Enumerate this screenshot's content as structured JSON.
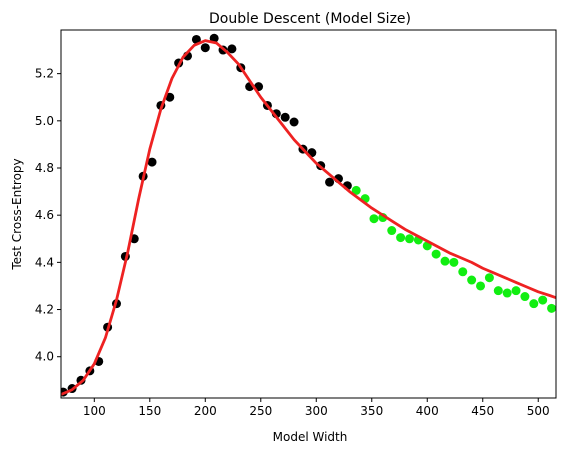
{
  "chart_data": {
    "type": "scatter",
    "title": "Double Descent (Model Size)",
    "xlabel": "Model Width",
    "ylabel": "Test Cross-Entropy",
    "xlim": [
      70,
      516
    ],
    "ylim": [
      3.825,
      5.385
    ],
    "x_ticks": [
      100,
      150,
      200,
      250,
      300,
      350,
      400,
      450,
      500
    ],
    "y_ticks": [
      4.0,
      4.2,
      4.4,
      4.6,
      4.8,
      5.0,
      5.2
    ],
    "x_tick_labels": [
      "100",
      "150",
      "200",
      "250",
      "300",
      "350",
      "400",
      "450",
      "500"
    ],
    "y_tick_labels": [
      "4.0",
      "4.2",
      "4.4",
      "4.6",
      "4.8",
      "5.0",
      "5.2"
    ],
    "grid": false,
    "legend": "none",
    "series": [
      {
        "color": "#000000",
        "points": [
          [
            72,
            3.85
          ],
          [
            80,
            3.865
          ],
          [
            88,
            3.9
          ],
          [
            96,
            3.94
          ],
          [
            104,
            3.98
          ],
          [
            112,
            4.125
          ],
          [
            120,
            4.225
          ],
          [
            128,
            4.425
          ],
          [
            136,
            4.5
          ],
          [
            144,
            4.765
          ],
          [
            152,
            4.825
          ],
          [
            160,
            5.065
          ],
          [
            168,
            5.1
          ],
          [
            176,
            5.245
          ],
          [
            184,
            5.275
          ],
          [
            192,
            5.345
          ],
          [
            200,
            5.31
          ],
          [
            208,
            5.35
          ],
          [
            216,
            5.3
          ],
          [
            224,
            5.305
          ],
          [
            232,
            5.225
          ],
          [
            240,
            5.145
          ],
          [
            248,
            5.145
          ],
          [
            256,
            5.065
          ],
          [
            264,
            5.03
          ],
          [
            272,
            5.015
          ],
          [
            280,
            4.995
          ],
          [
            288,
            4.88
          ],
          [
            296,
            4.865
          ],
          [
            304,
            4.81
          ],
          [
            312,
            4.74
          ],
          [
            320,
            4.755
          ],
          [
            328,
            4.725
          ]
        ]
      },
      {
        "color": "#11ee11",
        "points": [
          [
            336,
            4.705
          ],
          [
            344,
            4.67
          ],
          [
            352,
            4.585
          ],
          [
            360,
            4.59
          ],
          [
            368,
            4.535
          ],
          [
            376,
            4.505
          ],
          [
            384,
            4.5
          ],
          [
            392,
            4.495
          ],
          [
            400,
            4.47
          ],
          [
            408,
            4.435
          ],
          [
            416,
            4.405
          ],
          [
            424,
            4.4
          ],
          [
            432,
            4.36
          ],
          [
            440,
            4.325
          ],
          [
            448,
            4.3
          ],
          [
            456,
            4.335
          ],
          [
            464,
            4.28
          ],
          [
            472,
            4.27
          ],
          [
            480,
            4.28
          ],
          [
            488,
            4.255
          ],
          [
            496,
            4.225
          ],
          [
            504,
            4.24
          ],
          [
            512,
            4.205
          ]
        ]
      },
      {
        "type": "line",
        "color": "#ee2222",
        "points": [
          [
            70,
            3.84
          ],
          [
            80,
            3.86
          ],
          [
            90,
            3.9
          ],
          [
            100,
            3.97
          ],
          [
            110,
            4.08
          ],
          [
            120,
            4.24
          ],
          [
            130,
            4.44
          ],
          [
            140,
            4.67
          ],
          [
            150,
            4.88
          ],
          [
            160,
            5.05
          ],
          [
            170,
            5.18
          ],
          [
            180,
            5.27
          ],
          [
            190,
            5.32
          ],
          [
            200,
            5.34
          ],
          [
            210,
            5.33
          ],
          [
            220,
            5.29
          ],
          [
            230,
            5.24
          ],
          [
            240,
            5.17
          ],
          [
            250,
            5.1
          ],
          [
            260,
            5.04
          ],
          [
            270,
            4.98
          ],
          [
            280,
            4.92
          ],
          [
            290,
            4.87
          ],
          [
            300,
            4.82
          ],
          [
            310,
            4.78
          ],
          [
            320,
            4.74
          ],
          [
            330,
            4.7
          ],
          [
            340,
            4.665
          ],
          [
            350,
            4.63
          ],
          [
            360,
            4.6
          ],
          [
            370,
            4.57
          ],
          [
            380,
            4.54
          ],
          [
            390,
            4.515
          ],
          [
            400,
            4.49
          ],
          [
            410,
            4.465
          ],
          [
            420,
            4.44
          ],
          [
            430,
            4.42
          ],
          [
            440,
            4.4
          ],
          [
            450,
            4.375
          ],
          [
            460,
            4.355
          ],
          [
            470,
            4.335
          ],
          [
            480,
            4.315
          ],
          [
            490,
            4.295
          ],
          [
            500,
            4.275
          ],
          [
            510,
            4.26
          ],
          [
            516,
            4.25
          ]
        ]
      }
    ]
  }
}
